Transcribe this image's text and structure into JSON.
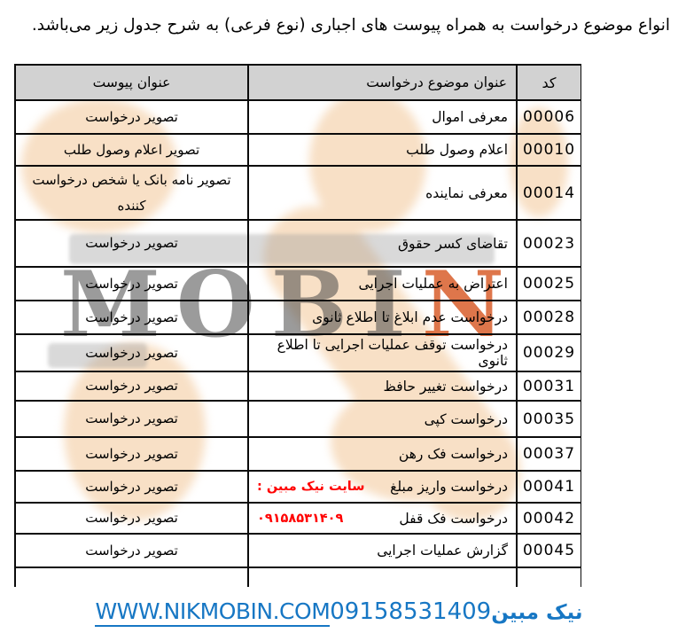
{
  "title": "انواع موضوع درخواست به همراه پیوست های اجباری (نوع فرعی) به شرح جدول زیر می‌باشد.",
  "table": {
    "headers": {
      "code": "کد",
      "subject": "عنوان موضوع درخواست",
      "attachment": "عنوان پیوست"
    },
    "rows": [
      {
        "code": "00006",
        "subject": "معرفی اموال",
        "attachment": "تصویر درخواست"
      },
      {
        "code": "00010",
        "subject": "اعلام وصول طلب",
        "attachment": "تصویر اعلام وصول طلب"
      },
      {
        "code": "00014",
        "subject": "معرفی نماینده",
        "attachment": "تصویر نامه بانک یا شخص درخواست کننده"
      },
      {
        "code": "00023",
        "subject": "تقاضای کسر حقوق",
        "attachment": "تصویر درخواست"
      },
      {
        "code": "00025",
        "subject": "اعتراض به عملیات اجرایی",
        "attachment": "تصویر درخواست"
      },
      {
        "code": "00028",
        "subject": "درخواست عدم ابلاغ تا اطلاع ثانوی",
        "attachment": "تصویر درخواست"
      },
      {
        "code": "00029",
        "subject": "درخواست توقف عملیات اجرایی تا اطلاع ثانوی",
        "attachment": "تصویر درخواست"
      },
      {
        "code": "00031",
        "subject": "درخواست تغییر حافظ",
        "attachment": "تصویر درخواست"
      },
      {
        "code": "00035",
        "subject": "درخواست کپی",
        "attachment": "تصویر درخواست"
      },
      {
        "code": "00037",
        "subject": "درخواست فک رهن",
        "attachment": "تصویر درخواست"
      },
      {
        "code": "00041",
        "subject": "درخواست واریز مبلغ",
        "attachment": "تصویر درخواست",
        "note": "سایت نیک مبین :"
      },
      {
        "code": "00042",
        "subject": "درخواست فک قفل",
        "attachment": "تصویر درخواست",
        "note": "۰۹۱۵۸۵۳۱۴۰۹"
      },
      {
        "code": "00045",
        "subject": "گزارش عملیات اجرایی",
        "attachment": "تصویر درخواست"
      }
    ]
  },
  "watermark": {
    "text_gray": "MOBI",
    "text_orange": "N"
  },
  "footer": {
    "url": "WWW.NIKMOBIN.COM",
    "brand": "نیک مبین",
    "phone": "09158531409"
  },
  "colors": {
    "note_red": "#ff0000",
    "footer_blue": "#1777c4",
    "header_gray": "#d2d2d2",
    "watermark_peach": "#f8e0c6",
    "watermark_orange": "#d54f18",
    "border_black": "#0b0b0b"
  }
}
